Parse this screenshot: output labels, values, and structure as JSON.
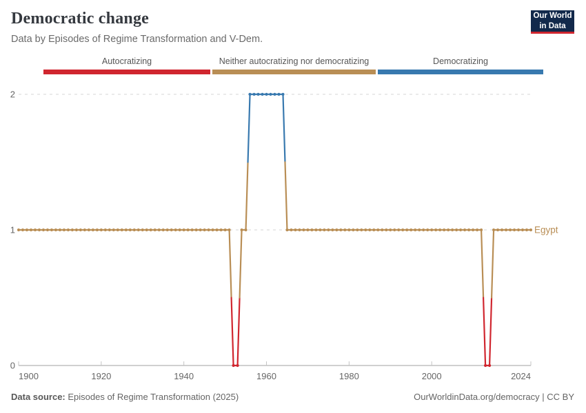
{
  "header": {
    "title": "Democratic change",
    "subtitle": "Data by Episodes of Regime Transformation and V-Dem.",
    "logo": {
      "line1": "Our World",
      "line2": "in Data"
    }
  },
  "legend": {
    "items": [
      {
        "label": "Autocratizing",
        "color": "#d0262f"
      },
      {
        "label": "Neither autocratizing nor democratizing",
        "color": "#b98e55"
      },
      {
        "label": "Democratizing",
        "color": "#3879af"
      }
    ]
  },
  "footer": {
    "source_label": "Data source:",
    "source_value": " Episodes of Regime Transformation (2025)",
    "link": "OurWorldinData.org/democracy | CC BY"
  },
  "chart_data": {
    "type": "line",
    "title": "Democratic change",
    "entity_label": "Egypt",
    "xlabel": "",
    "ylabel": "",
    "xlim": [
      1900,
      2024
    ],
    "ylim": [
      0,
      2
    ],
    "x_ticks": [
      1900,
      1920,
      1940,
      1960,
      1980,
      2000,
      2024
    ],
    "y_ticks": [
      0,
      1,
      2
    ],
    "grid": "dashed horizontal gridlines at y=1 and y=2; solid x axis at y=0",
    "legend_position": "top categorical strip",
    "value_meaning": {
      "0": "Autocratizing",
      "1": "Neither autocratizing nor democratizing",
      "2": "Democratizing"
    },
    "series": [
      {
        "name": "Egypt",
        "color_by_value": {
          "0": "#d0262f",
          "1": "#b98e55",
          "2": "#3879af"
        },
        "label_color": "#b98e55",
        "runs": [
          {
            "from": 1900,
            "to": 1951,
            "value": 1
          },
          {
            "from": 1952,
            "to": 1953,
            "value": 0
          },
          {
            "from": 1954,
            "to": 1955,
            "value": 1
          },
          {
            "from": 1956,
            "to": 1964,
            "value": 2
          },
          {
            "from": 1965,
            "to": 2012,
            "value": 1
          },
          {
            "from": 2013,
            "to": 2014,
            "value": 0
          },
          {
            "from": 2015,
            "to": 2024,
            "value": 1
          }
        ]
      }
    ]
  }
}
